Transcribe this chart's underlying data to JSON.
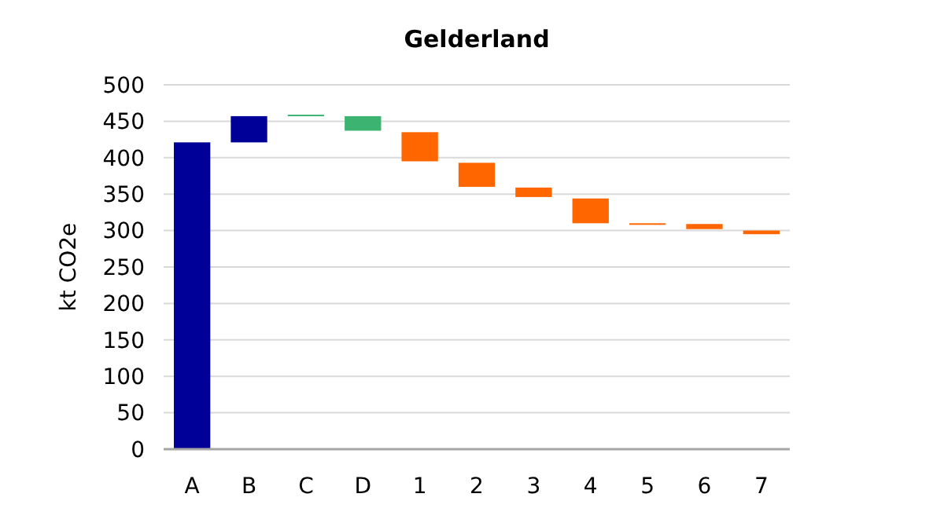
{
  "chart_data": {
    "type": "bar",
    "title": "Gelderland",
    "ylabel": "kt CO2e",
    "categories": [
      "A",
      "B",
      "C",
      "D",
      "1",
      "2",
      "3",
      "4",
      "5",
      "6",
      "7"
    ],
    "values": [
      421,
      36,
      2,
      20,
      40,
      33,
      13,
      34,
      1,
      7,
      5
    ],
    "base": [
      0,
      421,
      457,
      437,
      395,
      360,
      346,
      310,
      309,
      302,
      295
    ],
    "colors": [
      "#000099",
      "#000099",
      "#3cb371",
      "#3cb371",
      "#ff6600",
      "#ff6600",
      "#ff6600",
      "#ff6600",
      "#ff6600",
      "#ff6600",
      "#ff6600"
    ],
    "ylim": [
      0,
      500
    ],
    "yticks": [
      0,
      50,
      100,
      150,
      200,
      250,
      300,
      350,
      400,
      450,
      500
    ],
    "grid": "y"
  }
}
